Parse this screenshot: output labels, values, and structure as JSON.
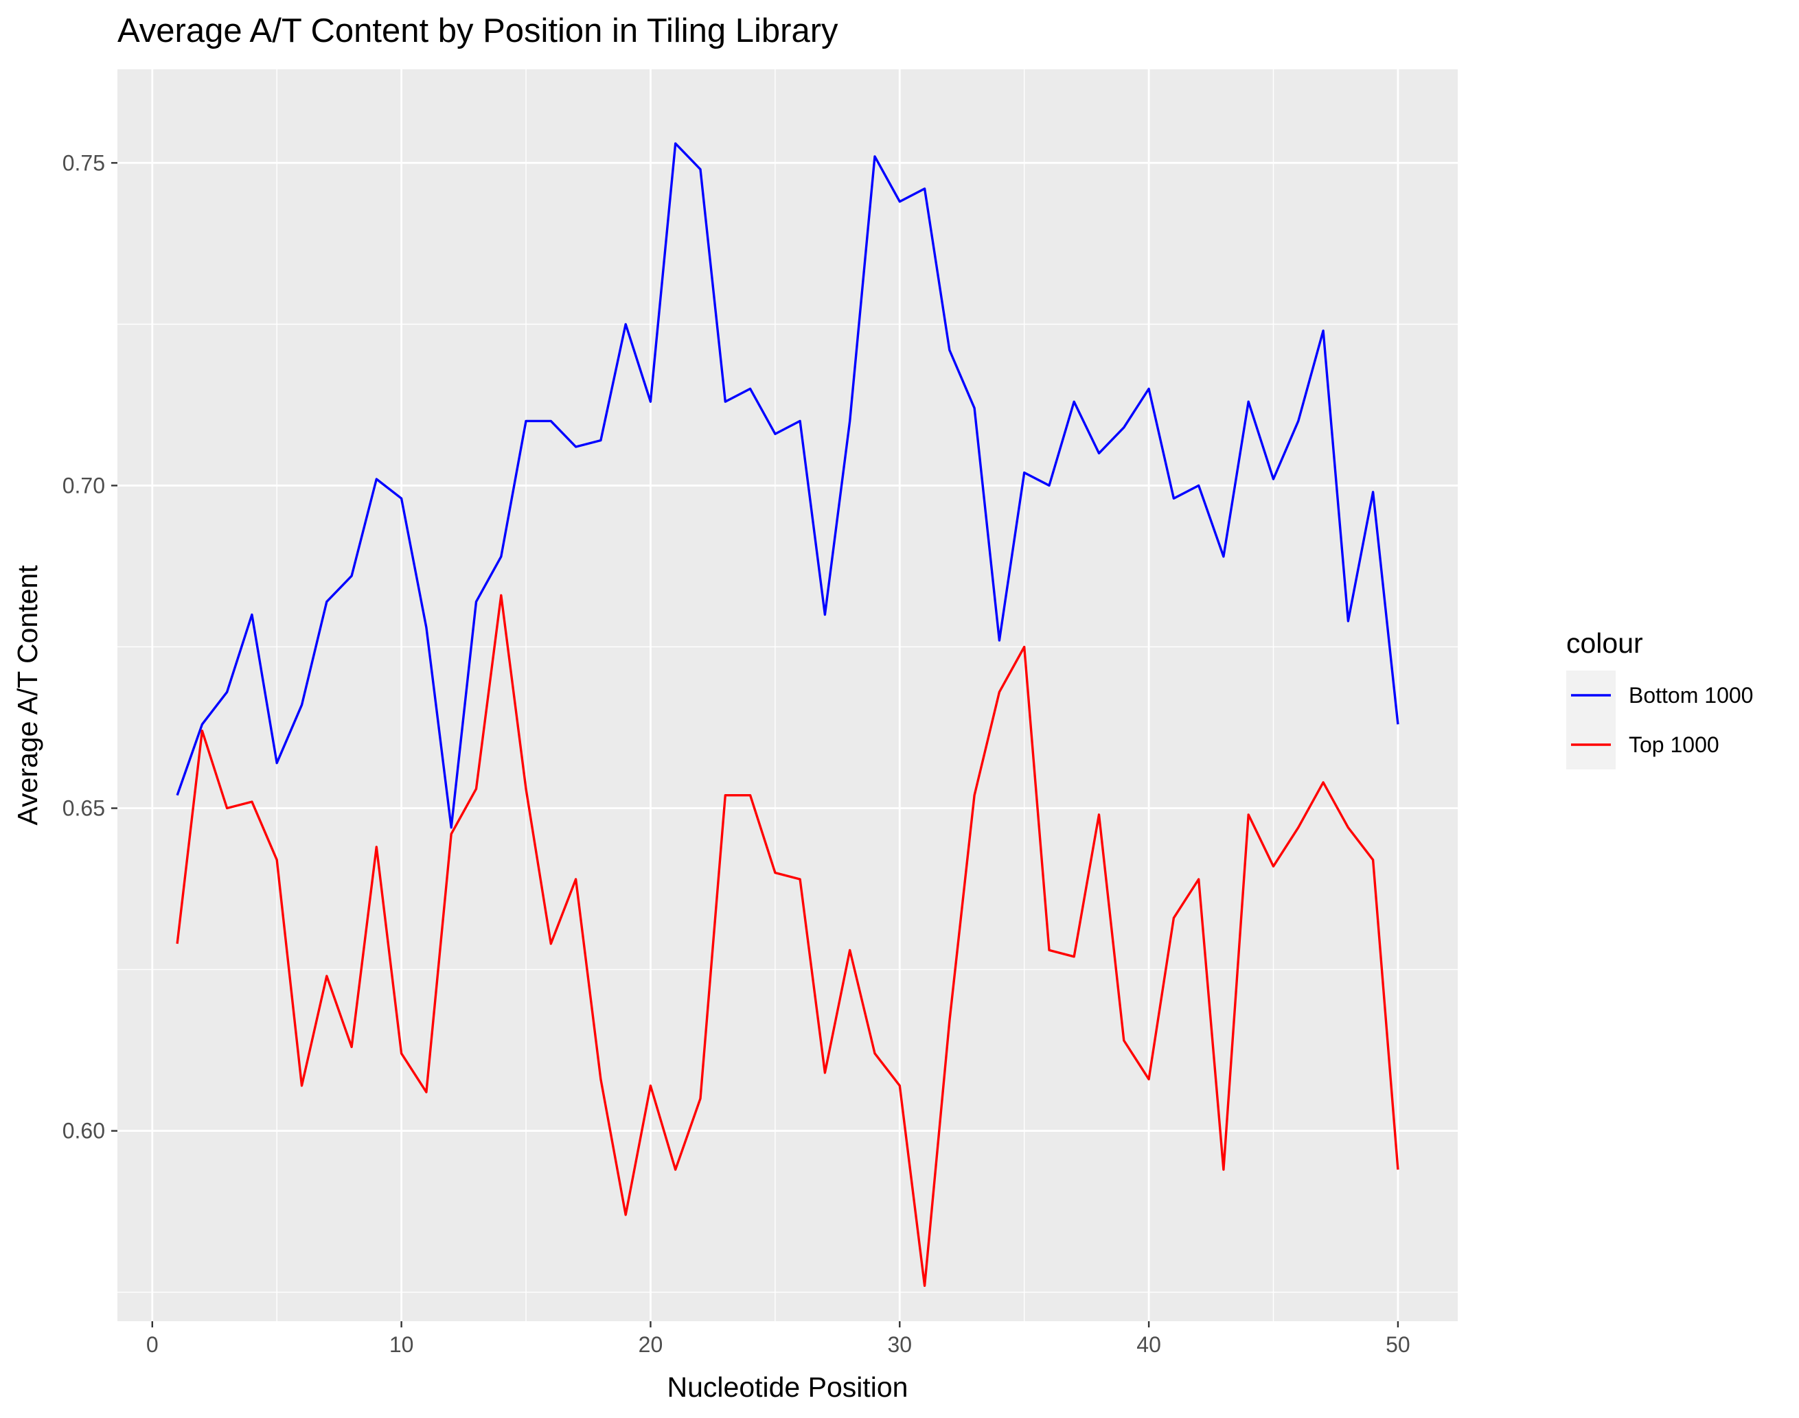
{
  "chart_data": {
    "type": "line",
    "title": "Average A/T Content by Position in Tiling Library",
    "xlabel": "Nucleotide Position",
    "ylabel": "Average A/T Content",
    "xlim": [
      -1.4,
      52.4
    ],
    "ylim": [
      0.5705,
      0.7645
    ],
    "x_ticks": [
      0,
      10,
      20,
      30,
      40,
      50
    ],
    "x_tick_labels": [
      "0",
      "10",
      "20",
      "30",
      "40",
      "50"
    ],
    "y_ticks": [
      0.6,
      0.65,
      0.7,
      0.75
    ],
    "y_tick_labels": [
      "0.60",
      "0.65",
      "0.70",
      "0.75"
    ],
    "grid": true,
    "legend": {
      "title": "colour",
      "placement": "right"
    },
    "x": [
      1,
      2,
      3,
      4,
      5,
      6,
      7,
      8,
      9,
      10,
      11,
      12,
      13,
      14,
      15,
      16,
      17,
      18,
      19,
      20,
      21,
      22,
      23,
      24,
      25,
      26,
      27,
      28,
      29,
      30,
      31,
      32,
      33,
      34,
      35,
      36,
      37,
      38,
      39,
      40,
      41,
      42,
      43,
      44,
      45,
      46,
      47,
      48,
      49,
      50
    ],
    "series": [
      {
        "name": "Bottom 1000",
        "color": "#0000ff",
        "values": [
          0.652,
          0.663,
          0.668,
          0.68,
          0.657,
          0.666,
          0.682,
          0.686,
          0.701,
          0.698,
          0.678,
          0.647,
          0.682,
          0.689,
          0.71,
          0.71,
          0.706,
          0.707,
          0.725,
          0.713,
          0.753,
          0.749,
          0.713,
          0.715,
          0.708,
          0.71,
          0.68,
          0.71,
          0.751,
          0.744,
          0.746,
          0.721,
          0.712,
          0.676,
          0.702,
          0.7,
          0.713,
          0.705,
          0.709,
          0.715,
          0.698,
          0.7,
          0.689,
          0.713,
          0.701,
          0.71,
          0.724,
          0.679,
          0.699,
          0.663
        ]
      },
      {
        "name": "Top 1000",
        "color": "#ff0000",
        "values": [
          0.629,
          0.662,
          0.65,
          0.651,
          0.642,
          0.607,
          0.624,
          0.613,
          0.644,
          0.612,
          0.606,
          0.646,
          0.653,
          0.683,
          0.653,
          0.629,
          0.639,
          0.608,
          0.587,
          0.607,
          0.594,
          0.605,
          0.652,
          0.652,
          0.64,
          0.639,
          0.609,
          0.628,
          0.612,
          0.607,
          0.576,
          0.617,
          0.652,
          0.668,
          0.675,
          0.628,
          0.627,
          0.649,
          0.614,
          0.608,
          0.633,
          0.639,
          0.594,
          0.649,
          0.641,
          0.647,
          0.654,
          0.647,
          0.642,
          0.594
        ]
      }
    ]
  }
}
